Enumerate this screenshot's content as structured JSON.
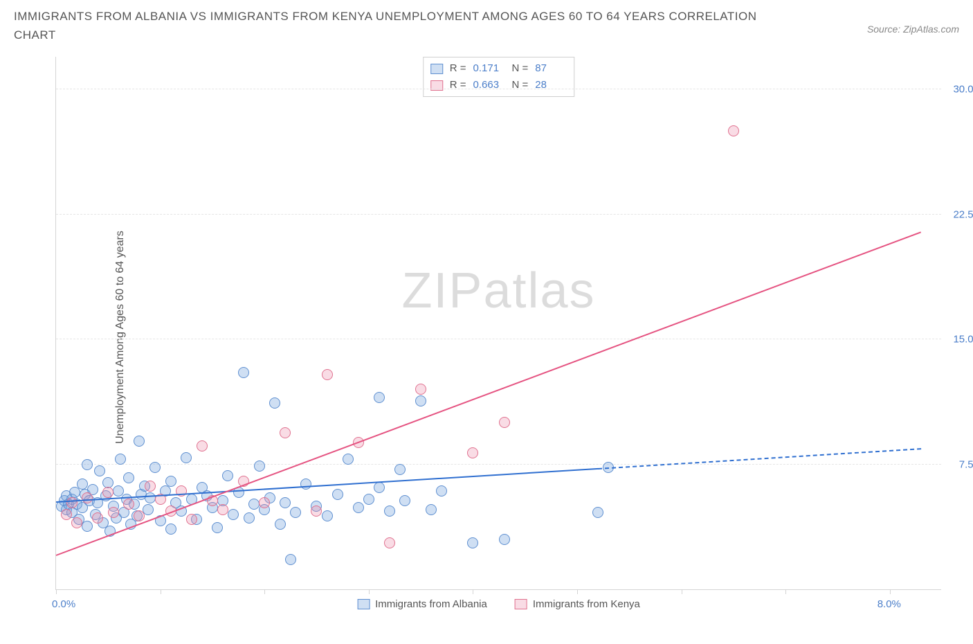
{
  "title": "IMMIGRANTS FROM ALBANIA VS IMMIGRANTS FROM KENYA UNEMPLOYMENT AMONG AGES 60 TO 64 YEARS CORRELATION CHART",
  "source": "Source: ZipAtlas.com",
  "ylabel": "Unemployment Among Ages 60 to 64 years",
  "watermark_a": "ZIP",
  "watermark_b": "atlas",
  "chart": {
    "type": "scatter",
    "background_color": "#ffffff",
    "grid_color": "#e5e5e5",
    "axis_color": "#d4d4d4",
    "xlim": [
      0,
      8.5
    ],
    "ylim": [
      0,
      32
    ],
    "x_ticks": [
      0,
      1,
      2,
      3,
      4,
      5,
      6,
      7,
      8
    ],
    "x_tick_labels": {
      "0": "0.0%",
      "8": "8.0%"
    },
    "y_right_ticks": [
      7.5,
      15.0,
      22.5,
      30.0
    ],
    "y_right_labels": [
      "7.5%",
      "15.0%",
      "22.5%",
      "30.0%"
    ],
    "y_label_color": "#4b7ec9",
    "marker_radius": 8,
    "marker_border_width": 1.5,
    "series": [
      {
        "name": "Immigrants from Albania",
        "fill": "rgba(118,162,220,0.35)",
        "stroke": "#5e8fd0",
        "R": "0.171",
        "N": "87",
        "trend": {
          "x1": 0,
          "y1": 5.2,
          "x2": 5.2,
          "y2": 7.2,
          "color": "#2f6fd0",
          "dash_x2": 8.3,
          "dash_y2": 8.4
        },
        "points": [
          [
            0.05,
            5.0
          ],
          [
            0.08,
            5.3
          ],
          [
            0.1,
            4.8
          ],
          [
            0.1,
            5.6
          ],
          [
            0.12,
            5.1
          ],
          [
            0.15,
            5.4
          ],
          [
            0.15,
            4.6
          ],
          [
            0.18,
            5.8
          ],
          [
            0.2,
            5.1
          ],
          [
            0.22,
            4.2
          ],
          [
            0.25,
            6.3
          ],
          [
            0.25,
            4.9
          ],
          [
            0.28,
            5.7
          ],
          [
            0.3,
            7.5
          ],
          [
            0.3,
            3.8
          ],
          [
            0.32,
            5.3
          ],
          [
            0.35,
            6.0
          ],
          [
            0.38,
            4.5
          ],
          [
            0.4,
            5.2
          ],
          [
            0.42,
            7.1
          ],
          [
            0.45,
            4.0
          ],
          [
            0.48,
            5.6
          ],
          [
            0.5,
            6.4
          ],
          [
            0.52,
            3.5
          ],
          [
            0.55,
            5.0
          ],
          [
            0.58,
            4.3
          ],
          [
            0.6,
            5.9
          ],
          [
            0.62,
            7.8
          ],
          [
            0.65,
            4.6
          ],
          [
            0.68,
            5.4
          ],
          [
            0.7,
            6.7
          ],
          [
            0.72,
            3.9
          ],
          [
            0.75,
            5.1
          ],
          [
            0.78,
            4.4
          ],
          [
            0.8,
            8.9
          ],
          [
            0.82,
            5.7
          ],
          [
            0.85,
            6.2
          ],
          [
            0.88,
            4.8
          ],
          [
            0.9,
            5.5
          ],
          [
            0.95,
            7.3
          ],
          [
            1.0,
            4.1
          ],
          [
            1.05,
            5.9
          ],
          [
            1.1,
            6.5
          ],
          [
            1.1,
            3.6
          ],
          [
            1.15,
            5.2
          ],
          [
            1.2,
            4.7
          ],
          [
            1.25,
            7.9
          ],
          [
            1.3,
            5.4
          ],
          [
            1.35,
            4.2
          ],
          [
            1.4,
            6.1
          ],
          [
            1.45,
            5.6
          ],
          [
            1.5,
            4.9
          ],
          [
            1.55,
            3.7
          ],
          [
            1.6,
            5.3
          ],
          [
            1.65,
            6.8
          ],
          [
            1.7,
            4.5
          ],
          [
            1.75,
            5.8
          ],
          [
            1.8,
            13.0
          ],
          [
            1.85,
            4.3
          ],
          [
            1.9,
            5.1
          ],
          [
            1.95,
            7.4
          ],
          [
            2.0,
            4.8
          ],
          [
            2.05,
            5.5
          ],
          [
            2.1,
            11.2
          ],
          [
            2.15,
            3.9
          ],
          [
            2.2,
            5.2
          ],
          [
            2.25,
            1.8
          ],
          [
            2.3,
            4.6
          ],
          [
            2.4,
            6.3
          ],
          [
            2.5,
            5.0
          ],
          [
            2.6,
            4.4
          ],
          [
            2.7,
            5.7
          ],
          [
            2.8,
            7.8
          ],
          [
            2.9,
            4.9
          ],
          [
            3.0,
            5.4
          ],
          [
            3.1,
            11.5
          ],
          [
            3.1,
            6.1
          ],
          [
            3.2,
            4.7
          ],
          [
            3.3,
            7.2
          ],
          [
            3.35,
            5.3
          ],
          [
            3.5,
            11.3
          ],
          [
            3.6,
            4.8
          ],
          [
            3.7,
            5.9
          ],
          [
            4.0,
            2.8
          ],
          [
            4.3,
            3.0
          ],
          [
            5.2,
            4.6
          ],
          [
            5.3,
            7.3
          ]
        ]
      },
      {
        "name": "Immigrants from Kenya",
        "fill": "rgba(236,140,170,0.30)",
        "stroke": "#e0718f",
        "R": "0.663",
        "N": "28",
        "trend": {
          "x1": 0,
          "y1": 2.0,
          "x2": 8.3,
          "y2": 21.4,
          "color": "#e55381"
        },
        "points": [
          [
            0.1,
            4.5
          ],
          [
            0.15,
            5.2
          ],
          [
            0.2,
            4.0
          ],
          [
            0.3,
            5.5
          ],
          [
            0.4,
            4.3
          ],
          [
            0.5,
            5.8
          ],
          [
            0.55,
            4.6
          ],
          [
            0.7,
            5.1
          ],
          [
            0.8,
            4.4
          ],
          [
            0.9,
            6.2
          ],
          [
            1.0,
            5.4
          ],
          [
            1.1,
            4.7
          ],
          [
            1.2,
            5.9
          ],
          [
            1.3,
            4.2
          ],
          [
            1.4,
            8.6
          ],
          [
            1.5,
            5.3
          ],
          [
            1.6,
            4.8
          ],
          [
            1.8,
            6.5
          ],
          [
            2.0,
            5.2
          ],
          [
            2.2,
            9.4
          ],
          [
            2.5,
            4.7
          ],
          [
            2.6,
            12.9
          ],
          [
            2.9,
            8.8
          ],
          [
            3.2,
            2.8
          ],
          [
            3.5,
            12.0
          ],
          [
            4.0,
            8.2
          ],
          [
            4.3,
            10.0
          ],
          [
            6.5,
            27.5
          ]
        ]
      }
    ]
  },
  "legend_top_labels": {
    "r": "R = ",
    "n": "N = "
  },
  "legend_bottom": [
    "Immigrants from Albania",
    "Immigrants from Kenya"
  ]
}
